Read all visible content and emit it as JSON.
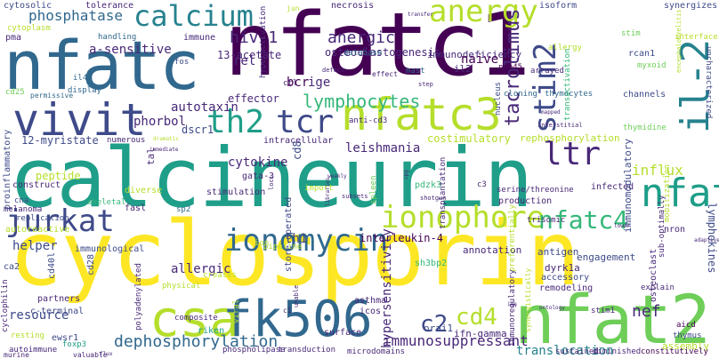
{
  "colors": {
    "background": "#ffffff",
    "palette": [
      "#440154",
      "#482878",
      "#3e4a89",
      "#31688e",
      "#26828e",
      "#1f9e89",
      "#35b779",
      "#6ece58",
      "#b5de2b",
      "#fde725"
    ]
  },
  "words": [
    "calcineurin",
    "cyclosporin",
    "nfatc1",
    "nfatc",
    "nfat2",
    "csa",
    "fk506",
    "nfatc3",
    "nfat4",
    "il-2",
    "vivit",
    "calcium",
    "anergy",
    "ionomycin",
    "ionophore",
    "nfatc4",
    "jurkat",
    "th2",
    "tcr",
    "ltr",
    "stim2",
    "tacrolimus",
    "lymphocytes",
    "phosphatase",
    "hiv-1",
    "anergic",
    "dephosphorylation",
    "immunosuppressant",
    "c2",
    "cd4",
    "nef",
    "translocation",
    "influx",
    "a-sensitive",
    "13-acetate",
    "osteoclastogenesis",
    "immunodeficiency",
    "12-myristate",
    "phorbol",
    "autotaxin",
    "effector",
    "naive",
    "rel",
    "bcr",
    "ige",
    "dscr1",
    "cytokine",
    "gata-3",
    "cd8",
    "leishmania",
    "costimulatory",
    "rephosphorylation",
    "interleukin-4",
    "th1",
    "allergic",
    "helper",
    "peptide",
    "cytosolic",
    "tolerance",
    "necrosis",
    "jun",
    "isoform",
    "synergizes",
    "pma",
    "cytoplasm",
    "handling",
    "immune",
    "fos",
    "database",
    "mast",
    "il2",
    "nip45",
    "arrayed",
    "rcan1",
    "myxoid",
    "interface",
    "allergy",
    "stim",
    "cd25",
    "permissive",
    "il4",
    "display",
    "thymocytes",
    "cloning",
    "nucleus",
    "channels",
    "thymidine",
    "uncharacterized",
    "pdzk3",
    "sh3bp2",
    "annotation",
    "engagement",
    "nron",
    "antigen",
    "dyrk1a",
    "accessory",
    "resource",
    "resting",
    "ewsr1",
    "foxp3",
    "autoimmune",
    "surface",
    "transduction",
    "microdomains",
    "phospholipase",
    "polyadenylated",
    "immunological",
    "store-operated",
    "composite",
    "riken",
    "orai1",
    "ifn-gamma",
    "icos",
    "stim1",
    "aicd",
    "thymus",
    "assembly",
    "osteoclast",
    "remodeling",
    "explain",
    "lymphokines",
    "constitutively",
    "sustained",
    "diminished",
    "c-terminal",
    "cyclophilin",
    "partners",
    "autoreactive",
    "ca2",
    "cd40l",
    "cd28",
    "infected",
    "production",
    "serine/threonine",
    "transplantation",
    "mobilization",
    "preferentially",
    "sub-optimally",
    "construct",
    "numerous",
    "stimulation",
    "diverse",
    "tal",
    "fasl",
    "sp2",
    "creates",
    "physical",
    "melanoma",
    "cna",
    "replication",
    "proinflammatory",
    "viral",
    "pipeline",
    "import",
    "hypersensitivity",
    "immunomodulatory",
    "ctl",
    "effect",
    "hyperactivation",
    "c3",
    "trisomic",
    "skeletal",
    "spleen",
    "asthma",
    "ion",
    "intracellular",
    "immunoregulatory",
    "transactivation",
    "anti-cd3",
    "valuable",
    "murine",
    "flux",
    "mapped",
    "unable",
    "adaptive",
    "defect",
    "step",
    "transfer",
    "shotgun",
    "c1",
    "loci",
    "cpg",
    "subsets",
    "ontology",
    "ign",
    "libraries",
    "weakly",
    "interstitial",
    "synergistically",
    "encephalomyelitis",
    "immediate",
    "dramatic",
    "lower"
  ]
}
